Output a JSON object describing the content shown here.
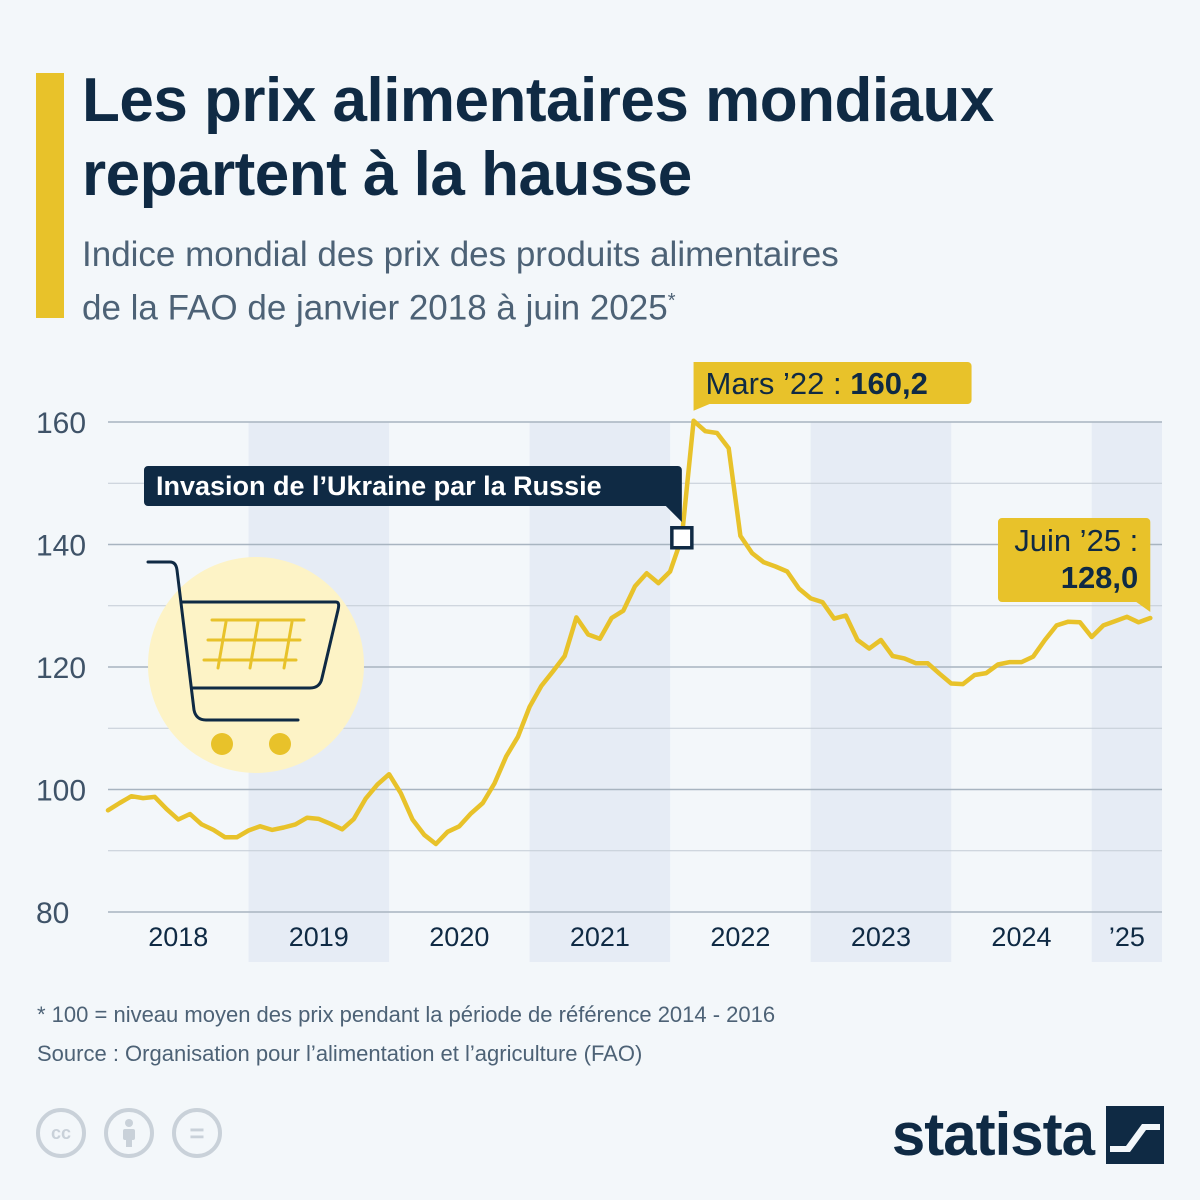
{
  "header": {
    "title_line1": "Les prix alimentaires mondiaux",
    "title_line2": "repartent à la hausse",
    "subtitle_line1": "Indice mondial des prix des produits alimentaires",
    "subtitle_line2": "de la FAO de janvier 2018 à juin 2025",
    "subtitle_mark": "*"
  },
  "colors": {
    "accent": "#e8c22a",
    "navy": "#0f2a44",
    "band": "#e6ecf5",
    "bg": "#f3f7fa"
  },
  "icons": [
    "shopping-cart-icon",
    "cc-icon",
    "attribution-icon",
    "no-derivatives-icon",
    "statista-logo-icon"
  ],
  "chart_data": {
    "type": "line",
    "series": [
      {
        "values": [
          96.6,
          97.8,
          98.9,
          98.6,
          98.8,
          96.8,
          95.1,
          96.0,
          94.3,
          93.4,
          92.2,
          92.2,
          93.3,
          94.0,
          93.4,
          93.8,
          94.3,
          95.4,
          95.2,
          94.4,
          93.5,
          95.2,
          98.5,
          100.8,
          102.5,
          99.4,
          95.1,
          92.6,
          91.1,
          93.1,
          94.0,
          96.1,
          97.8,
          101.0,
          105.4,
          108.6,
          113.5,
          116.9,
          119.3,
          121.8,
          128.1,
          125.3,
          124.6,
          128.0,
          129.2,
          133.2,
          135.3,
          133.7,
          135.6,
          141.1,
          160.2,
          158.5,
          158.2,
          155.7,
          141.4,
          138.6,
          137.1,
          136.4,
          135.6,
          132.8,
          131.2,
          130.6,
          127.9,
          128.4,
          124.4,
          123.0,
          124.4,
          121.8,
          121.4,
          120.6,
          120.6,
          118.9,
          117.3,
          117.2,
          118.7,
          119.0,
          120.4,
          120.8,
          120.8,
          121.7,
          124.4,
          126.8,
          127.4,
          127.3,
          124.9,
          126.8,
          127.5,
          128.2,
          127.3,
          128.0
        ],
        "start": "2018-01",
        "end": "2025-06"
      }
    ],
    "ylim": [
      80,
      160
    ],
    "yticks": [
      "80",
      "100",
      "120",
      "140",
      "160"
    ],
    "xticks": [
      "2018",
      "2019",
      "2020",
      "2021",
      "2022",
      "2023",
      "2024",
      "’25"
    ],
    "annotations": {
      "peak_label": "Mars ’22 : ",
      "peak_value": "160,2",
      "last_label": "Juin ’25 :",
      "last_value": "128,0",
      "event": "Invasion de l’Ukraine par la Russie",
      "event_date": "2022-02"
    },
    "grid": true
  },
  "footer": {
    "note": "* 100 = niveau moyen des prix pendant la période de référence 2014 - 2016",
    "source": "Source : Organisation pour l’alimentation et l’agriculture (FAO)",
    "logo_text": "statista",
    "cc_label": "cc",
    "equals_label": "="
  }
}
